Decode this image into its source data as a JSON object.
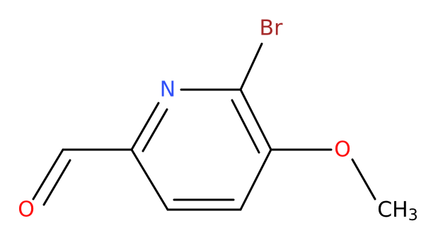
{
  "atoms": [
    {
      "label": "Br"
    },
    {
      "label": "N"
    },
    {
      "label": "O"
    },
    {
      "label": "O"
    },
    {
      "label": "CH",
      "subscript": "3"
    }
  ]
}
